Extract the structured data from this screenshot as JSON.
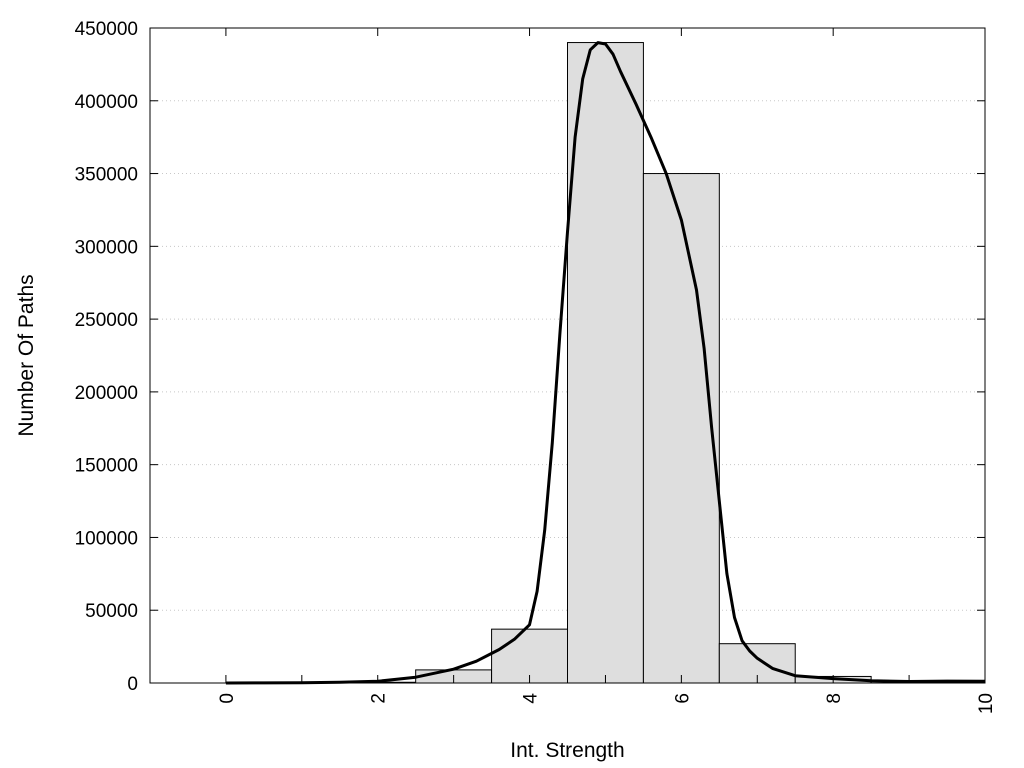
{
  "chart_data": {
    "type": "bar",
    "xlabel": "Int. Strength",
    "ylabel": "Number Of Paths",
    "xlim": [
      -1,
      10
    ],
    "ylim": [
      0,
      450000
    ],
    "grid": "horizontal dotted",
    "bar_width": 1,
    "bars": {
      "x": [
        0,
        1,
        2,
        3,
        4,
        5,
        6,
        7,
        8,
        9,
        10
      ],
      "values": [
        0,
        0,
        500,
        9000,
        37000,
        440000,
        350000,
        27000,
        4500,
        1200,
        800
      ]
    },
    "curve": {
      "x": [
        0,
        0.5,
        1,
        1.5,
        2,
        2.5,
        3,
        3.3,
        3.6,
        3.8,
        4,
        4.1,
        4.2,
        4.3,
        4.4,
        4.5,
        4.6,
        4.7,
        4.8,
        4.9,
        5.0,
        5.1,
        5.2,
        5.4,
        5.6,
        5.8,
        6.0,
        6.2,
        6.3,
        6.4,
        6.5,
        6.6,
        6.7,
        6.8,
        6.9,
        7.0,
        7.2,
        7.5,
        8,
        8.5,
        9,
        9.5,
        10
      ],
      "y": [
        0,
        100,
        200,
        500,
        1200,
        4000,
        9500,
        15000,
        23000,
        30000,
        40000,
        63000,
        105000,
        165000,
        240000,
        310000,
        375000,
        415000,
        435000,
        440000,
        439000,
        432000,
        420000,
        398000,
        375000,
        350000,
        318000,
        270000,
        230000,
        175000,
        125000,
        75000,
        45000,
        29000,
        22000,
        17000,
        10000,
        5000,
        3000,
        1500,
        1000,
        1300,
        1200
      ]
    },
    "x_ticks": [
      "0",
      "2",
      "4",
      "6",
      "8",
      "10"
    ],
    "y_ticks": [
      "0",
      "50000",
      "100000",
      "150000",
      "200000",
      "250000",
      "300000",
      "350000",
      "400000",
      "450000"
    ]
  }
}
